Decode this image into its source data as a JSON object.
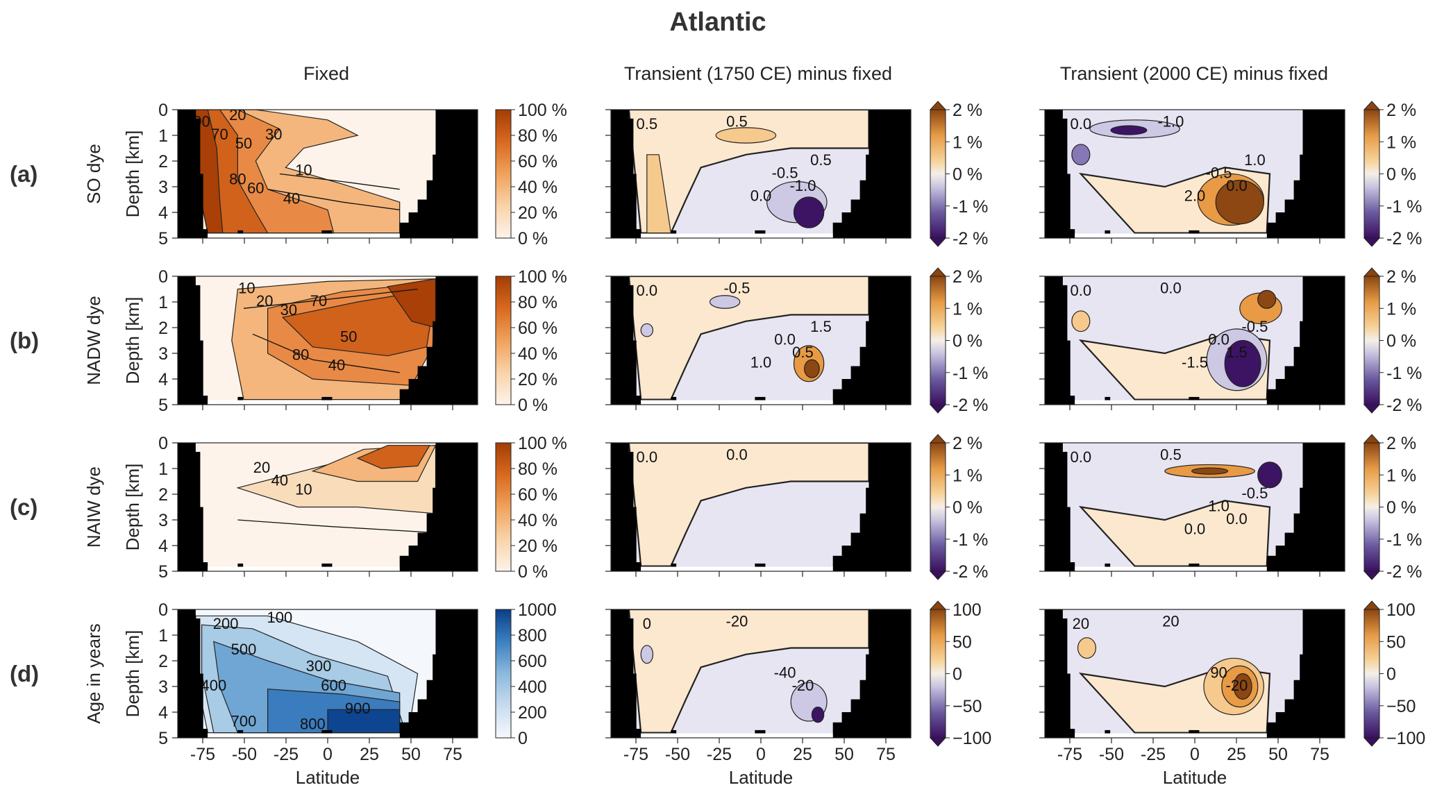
{
  "figure": {
    "title": "Atlantic",
    "columns": [
      "Fixed",
      "Transient (1750 CE) minus fixed",
      "Transient (2000 CE) minus fixed"
    ],
    "rows": [
      {
        "label": "(a)",
        "ylabel": "SO dye"
      },
      {
        "label": "(b)",
        "ylabel": "NADW dye"
      },
      {
        "label": "(c)",
        "ylabel": "NAIW dye"
      },
      {
        "label": "(d)",
        "ylabel": "Age in years"
      }
    ],
    "depth_label": "Depth [km]",
    "depth_ticks": [
      "0",
      "1",
      "2",
      "3",
      "4",
      "5"
    ],
    "xlabel": "Latitude",
    "lat_ticks": [
      "-75",
      "-50",
      "-25",
      "0",
      "25",
      "50",
      "75"
    ],
    "colorbars": {
      "dye_fixed": [
        "100 %",
        "80 %",
        "60 %",
        "40 %",
        "20 %",
        "0 %"
      ],
      "dye_diff": [
        "2 %",
        "1 %",
        "0 %",
        "-1 %",
        "-2 %"
      ],
      "age_fixed": [
        "1000",
        "800",
        "600",
        "400",
        "200",
        "0"
      ],
      "age_diff": [
        "100",
        "50",
        "0",
        "−50",
        "−100"
      ]
    },
    "colors": {
      "orange_scale": [
        "#fdf0e2",
        "#f7c08c",
        "#ec8e44",
        "#d2601a",
        "#a3430b"
      ],
      "purple_orange_div": [
        "#3a0f5e",
        "#8073ac",
        "#e4e2f0",
        "#fbe7c6",
        "#e9a14b",
        "#7f3b08"
      ],
      "blue_scale": [
        "#f4f8fd",
        "#c3d9ee",
        "#7fb1d9",
        "#3b7fbf",
        "#0b3d84"
      ],
      "land": "#000000"
    }
  },
  "chart_data": [
    {
      "type": "heatmap",
      "panel": "(a) SO dye - Fixed",
      "variable": "dye percent",
      "x": "Latitude",
      "y": "Depth [km]",
      "xlim": [
        -90,
        90
      ],
      "ylim": [
        5,
        0
      ],
      "contour_labels": [
        "90",
        "70",
        "50",
        "30",
        "10",
        "40",
        "60",
        "80",
        "20"
      ]
    },
    {
      "type": "heatmap",
      "panel": "(a) SO dye - Transient (1750 CE) minus fixed",
      "variable": "dye difference %",
      "xlim": [
        -90,
        90
      ],
      "ylim": [
        5,
        0
      ],
      "contour_labels": [
        "0.5",
        "0.5",
        "-0.5",
        "-1.0",
        "0.0",
        "0.5"
      ]
    },
    {
      "type": "heatmap",
      "panel": "(a) SO dye - Transient (2000 CE) minus fixed",
      "variable": "dye difference %",
      "xlim": [
        -90,
        90
      ],
      "ylim": [
        5,
        0
      ],
      "contour_labels": [
        "0.0",
        "-1.0",
        "-0.5",
        "0.0",
        "2.0",
        "1.0"
      ]
    },
    {
      "type": "heatmap",
      "panel": "(b) NADW dye - Fixed",
      "variable": "dye percent",
      "xlim": [
        -90,
        90
      ],
      "ylim": [
        5,
        0
      ],
      "contour_labels": [
        "10",
        "20",
        "30",
        "70",
        "50",
        "40",
        "80"
      ]
    },
    {
      "type": "heatmap",
      "panel": "(b) NADW dye - Transient (1750 CE) minus fixed",
      "variable": "dye difference %",
      "xlim": [
        -90,
        90
      ],
      "ylim": [
        5,
        0
      ],
      "contour_labels": [
        "0.0",
        "-0.5",
        "0.0",
        "0.5",
        "1.0",
        "1.5"
      ]
    },
    {
      "type": "heatmap",
      "panel": "(b) NADW dye - Transient (2000 CE) minus fixed",
      "variable": "dye difference %",
      "xlim": [
        -90,
        90
      ],
      "ylim": [
        5,
        0
      ],
      "contour_labels": [
        "0.0",
        "0.0",
        "0.0",
        "1.5",
        "-1.5",
        "-0.5"
      ]
    },
    {
      "type": "heatmap",
      "panel": "(c) NAIW dye - Fixed",
      "variable": "dye percent",
      "xlim": [
        -90,
        90
      ],
      "ylim": [
        5,
        0
      ],
      "contour_labels": [
        "20",
        "40",
        "10"
      ]
    },
    {
      "type": "heatmap",
      "panel": "(c) NAIW dye - Transient (1750 CE) minus fixed",
      "variable": "dye difference %",
      "xlim": [
        -90,
        90
      ],
      "ylim": [
        5,
        0
      ],
      "contour_labels": [
        "0.0",
        "0.0"
      ]
    },
    {
      "type": "heatmap",
      "panel": "(c) NAIW dye - Transient (2000 CE) minus fixed",
      "variable": "dye difference %",
      "xlim": [
        -90,
        90
      ],
      "ylim": [
        5,
        0
      ],
      "contour_labels": [
        "0.0",
        "0.5",
        "1.0",
        "0.0",
        "0.0",
        "-0.5"
      ]
    },
    {
      "type": "heatmap",
      "panel": "(d) Age in years - Fixed",
      "variable": "age years",
      "xlim": [
        -90,
        90
      ],
      "ylim": [
        5,
        0
      ],
      "contour_labels": [
        "200",
        "100",
        "500",
        "300",
        "400",
        "600",
        "900",
        "800",
        "700"
      ]
    },
    {
      "type": "heatmap",
      "panel": "(d) Age - Transient (1750 CE) minus fixed",
      "variable": "age difference years",
      "xlim": [
        -90,
        90
      ],
      "ylim": [
        5,
        0
      ],
      "contour_labels": [
        "0",
        "-20",
        "-40",
        "-20"
      ]
    },
    {
      "type": "heatmap",
      "panel": "(d) Age - Transient (2000 CE) minus fixed",
      "variable": "age difference years",
      "xlim": [
        -90,
        90
      ],
      "ylim": [
        5,
        0
      ],
      "contour_labels": [
        "20",
        "20",
        "90",
        "-20"
      ]
    }
  ]
}
